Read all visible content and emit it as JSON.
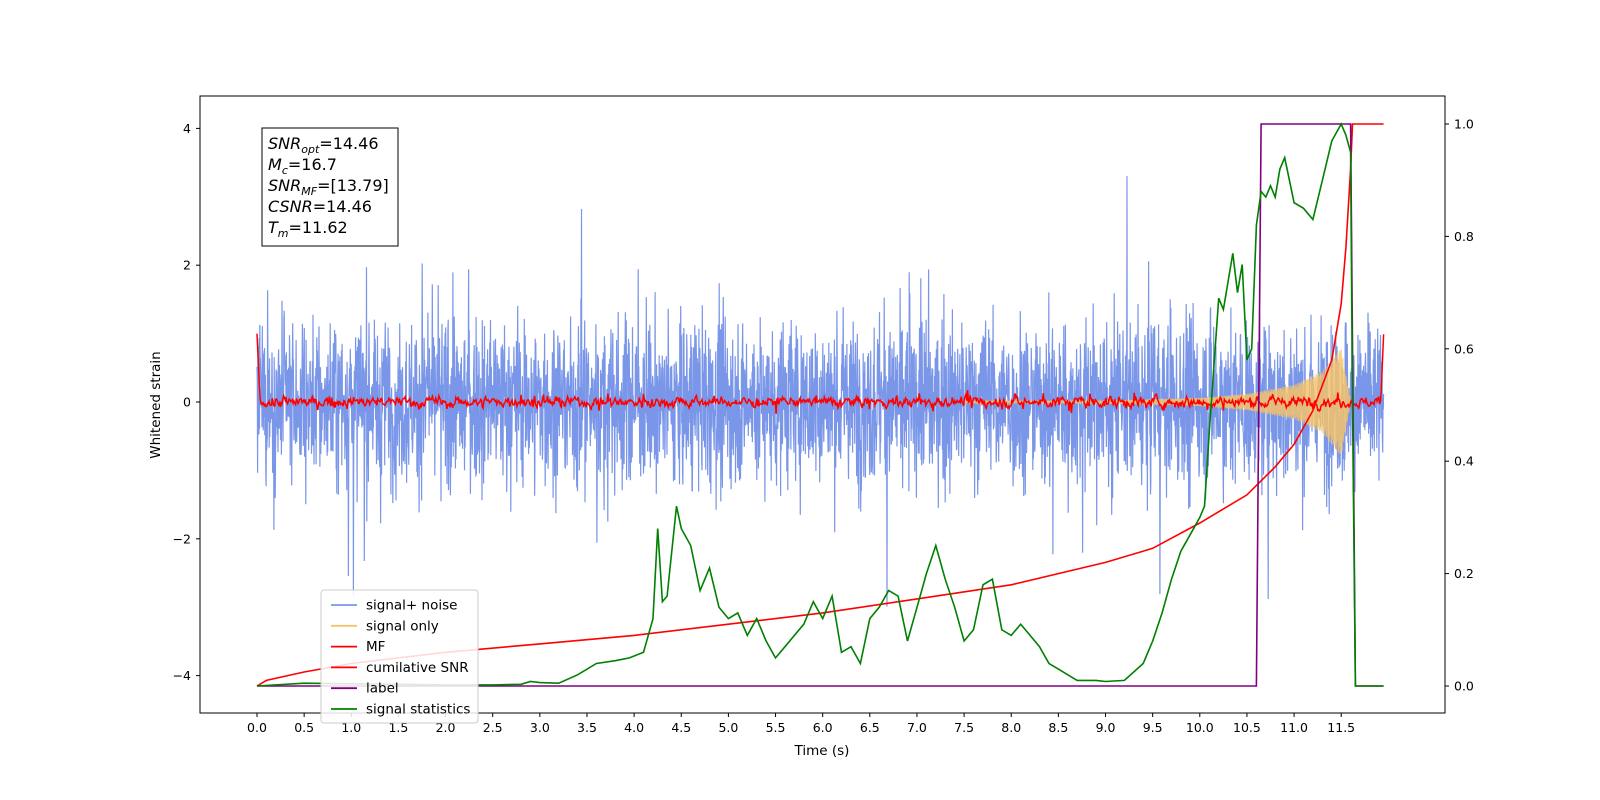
{
  "chart_data": {
    "type": "line",
    "xlabel": "Time (s)",
    "ylabel": "Whitened strain",
    "xlim": [
      -0.6,
      12.5
    ],
    "ylim": [
      -4.55,
      4.45
    ],
    "y2lim": [
      -0.05,
      1.05
    ],
    "xticks": [
      "0.0",
      "0.5",
      "1.0",
      "1.5",
      "2.0",
      "2.5",
      "3.0",
      "3.5",
      "4.0",
      "4.5",
      "5.0",
      "5.5",
      "6.0",
      "6.5",
      "7.0",
      "7.5",
      "8.0",
      "8.5",
      "9.0",
      "9.5",
      "10.0",
      "10.5",
      "11.0",
      "11.5"
    ],
    "yticks": [
      "4",
      "2",
      "0",
      "−2",
      "−4"
    ],
    "y2ticks": [
      "1.0",
      "0.8",
      "0.6",
      "0.4",
      "0.2",
      "0.0"
    ],
    "grid": false,
    "legend_position": "lower-left",
    "annotation": {
      "lines": [
        {
          "base": "SNR",
          "sub": "opt",
          "value": "=14.46"
        },
        {
          "base": "M",
          "sub": "c",
          "value": "=16.7"
        },
        {
          "base": "SNR",
          "sub": "MF",
          "value": "=[13.79]"
        },
        {
          "base": "CSNR",
          "sub": "",
          "value": "=14.46"
        },
        {
          "base": "T",
          "sub": "m",
          "value": "=11.62"
        }
      ]
    },
    "series": [
      {
        "name": "signal+ noise",
        "color": "#7a96e8",
        "axis": "left",
        "description_values": {
          "time_range": [
            0.0,
            11.95
          ],
          "typical_amplitude": 1.0,
          "peak_min": -3.4,
          "peak_max": 4.0
        }
      },
      {
        "name": "signal only",
        "color": "#f5c36b",
        "axis": "left",
        "chirp_envelope": {
          "x": [
            9.0,
            10.0,
            10.5,
            11.0,
            11.3,
            11.5,
            11.6
          ],
          "amp": [
            0.02,
            0.06,
            0.12,
            0.25,
            0.45,
            0.8,
            0.0
          ]
        }
      },
      {
        "name": "MF",
        "color": "#ff0000",
        "axis": "left",
        "description_values": {
          "start": 1.0,
          "baseline": 0.0,
          "noise_amplitude": 0.08,
          "end": 1.0
        }
      },
      {
        "name": "cumilative SNR",
        "color": "#ff0000",
        "axis": "right",
        "x": [
          0.0,
          0.1,
          0.5,
          1.0,
          2.0,
          3.0,
          4.0,
          5.0,
          6.0,
          7.0,
          8.0,
          9.0,
          9.5,
          10.0,
          10.5,
          10.8,
          11.0,
          11.2,
          11.4,
          11.5,
          11.55,
          11.6,
          11.62,
          11.95
        ],
        "values": [
          0.0,
          0.01,
          0.025,
          0.04,
          0.06,
          0.075,
          0.09,
          0.11,
          0.13,
          0.155,
          0.18,
          0.22,
          0.245,
          0.29,
          0.34,
          0.39,
          0.43,
          0.49,
          0.58,
          0.68,
          0.78,
          0.92,
          1.0,
          1.0
        ]
      },
      {
        "name": "label",
        "color": "#800080",
        "axis": "right",
        "x": [
          0.0,
          10.6,
          10.65,
          11.6,
          11.65,
          11.95
        ],
        "values": [
          0.0,
          0.0,
          1.0,
          1.0,
          0.0,
          0.0
        ]
      },
      {
        "name": "signal statistics",
        "color": "#008000",
        "axis": "right",
        "x": [
          0.0,
          0.5,
          1.0,
          1.5,
          2.0,
          2.5,
          2.8,
          2.9,
          3.0,
          3.2,
          3.4,
          3.6,
          3.8,
          3.95,
          4.1,
          4.2,
          4.25,
          4.3,
          4.35,
          4.45,
          4.5,
          4.6,
          4.7,
          4.8,
          4.9,
          5.0,
          5.1,
          5.2,
          5.3,
          5.4,
          5.5,
          5.6,
          5.7,
          5.8,
          5.9,
          6.0,
          6.1,
          6.2,
          6.3,
          6.4,
          6.5,
          6.6,
          6.7,
          6.8,
          6.9,
          7.0,
          7.1,
          7.2,
          7.3,
          7.4,
          7.5,
          7.6,
          7.7,
          7.8,
          7.9,
          8.0,
          8.1,
          8.2,
          8.3,
          8.4,
          8.5,
          8.6,
          8.7,
          8.8,
          8.9,
          9.0,
          9.2,
          9.4,
          9.5,
          9.6,
          9.7,
          9.8,
          9.9,
          10.0,
          10.05,
          10.1,
          10.2,
          10.25,
          10.3,
          10.35,
          10.4,
          10.45,
          10.5,
          10.55,
          10.6,
          10.65,
          10.7,
          10.75,
          10.8,
          10.85,
          10.9,
          11.0,
          11.1,
          11.2,
          11.3,
          11.4,
          11.5,
          11.55,
          11.6,
          11.62,
          11.65,
          11.95
        ],
        "values": [
          0.0,
          0.005,
          0.004,
          0.003,
          0.002,
          0.002,
          0.003,
          0.008,
          0.006,
          0.005,
          0.02,
          0.04,
          0.045,
          0.05,
          0.06,
          0.12,
          0.28,
          0.15,
          0.16,
          0.32,
          0.28,
          0.25,
          0.17,
          0.21,
          0.14,
          0.12,
          0.13,
          0.09,
          0.12,
          0.08,
          0.05,
          0.07,
          0.09,
          0.11,
          0.15,
          0.12,
          0.16,
          0.06,
          0.07,
          0.04,
          0.12,
          0.14,
          0.17,
          0.16,
          0.08,
          0.14,
          0.2,
          0.25,
          0.19,
          0.14,
          0.08,
          0.1,
          0.18,
          0.19,
          0.1,
          0.09,
          0.11,
          0.09,
          0.07,
          0.04,
          0.03,
          0.02,
          0.01,
          0.01,
          0.01,
          0.008,
          0.01,
          0.04,
          0.08,
          0.13,
          0.19,
          0.24,
          0.27,
          0.3,
          0.32,
          0.45,
          0.69,
          0.67,
          0.72,
          0.77,
          0.7,
          0.75,
          0.58,
          0.6,
          0.82,
          0.88,
          0.87,
          0.89,
          0.87,
          0.92,
          0.94,
          0.86,
          0.85,
          0.83,
          0.9,
          0.97,
          1.0,
          0.98,
          0.95,
          0.5,
          0.0,
          0.0
        ]
      }
    ]
  }
}
